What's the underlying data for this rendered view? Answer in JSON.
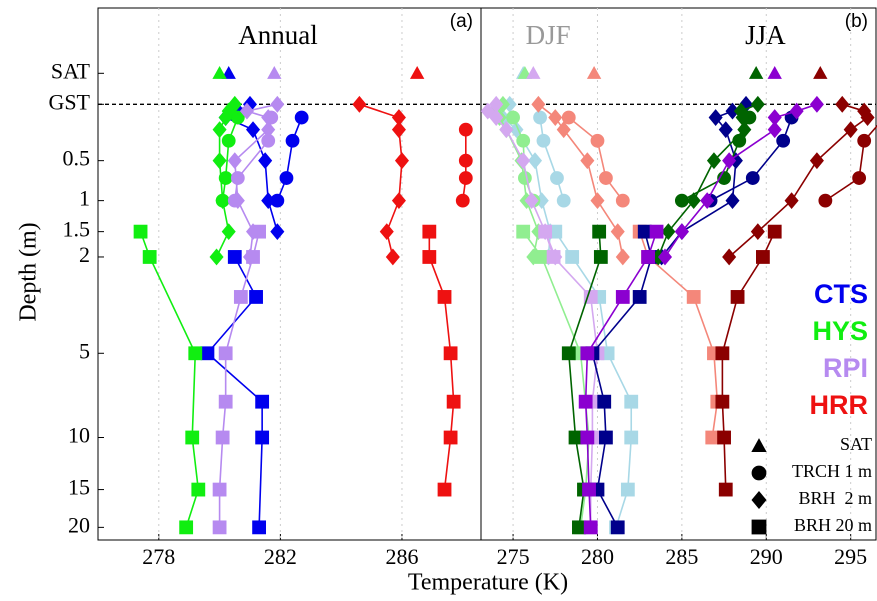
{
  "chart_data": [
    {
      "type": "profile",
      "titles": [
        {
          "text": "Annual",
          "color": "#000000"
        }
      ],
      "panel_label": "(a)",
      "xlabel": "Temperature (K)",
      "ylabel": "Depth (m)",
      "yscale": "log1p",
      "xlim": [
        276,
        288.6
      ],
      "xticks": [
        278,
        282,
        286
      ],
      "ylim": [
        -0.5,
        22
      ],
      "yticks": [
        {
          "value": -0.2,
          "label": "SAT"
        },
        {
          "value": 0,
          "label": "GST",
          "line": "dashed"
        },
        0.5,
        1,
        1.5,
        2,
        5,
        10,
        15,
        20
      ],
      "series": [
        {
          "color": "#0000ee",
          "marker": "triangle",
          "depths": [
            -0.2
          ],
          "values": [
            280.3
          ]
        },
        {
          "color": "#0000ee",
          "marker": "circle",
          "depths": [
            0.1,
            0.3,
            0.7,
            1.0
          ],
          "values": [
            282.7,
            282.4,
            282.2,
            281.9
          ]
        },
        {
          "color": "#0000ee",
          "marker": "diamond",
          "depths": [
            0,
            0.05,
            0.1,
            0.2,
            0.5,
            1.0,
            1.5
          ],
          "values": [
            281.0,
            280.6,
            280.2,
            281.1,
            281.5,
            281.6,
            281.9
          ]
        },
        {
          "color": "#0000ee",
          "marker": "square",
          "depths": [
            2,
            3,
            5,
            7.5,
            10,
            20
          ],
          "values": [
            280.5,
            281.2,
            279.6,
            281.4,
            281.4,
            281.3
          ]
        },
        {
          "color": "#11ee11",
          "marker": "triangle",
          "depths": [
            -0.2
          ],
          "values": [
            280.0
          ]
        },
        {
          "color": "#11ee11",
          "marker": "circle",
          "depths": [
            0.1,
            0.3,
            0.7,
            1.0
          ],
          "values": [
            280.6,
            280.3,
            280.2,
            280.1
          ]
        },
        {
          "color": "#11ee11",
          "marker": "diamond",
          "depths": [
            0,
            0.05,
            0.1,
            0.2,
            0.5,
            1.0,
            1.5,
            2
          ],
          "values": [
            280.5,
            280.3,
            280.2,
            280.0,
            280.0,
            280.1,
            280.3,
            279.9
          ]
        },
        {
          "color": "#11ee11",
          "marker": "square",
          "depths": [
            1.5,
            2,
            5,
            10,
            15,
            20
          ],
          "values": [
            277.4,
            277.7,
            279.2,
            279.1,
            279.3,
            278.9
          ]
        },
        {
          "color": "#b68af0",
          "marker": "triangle",
          "depths": [
            -0.2
          ],
          "values": [
            281.8
          ]
        },
        {
          "color": "#b68af0",
          "marker": "circle",
          "depths": [
            0.1,
            0.3,
            0.7,
            1.0
          ],
          "values": [
            281.7,
            281.6,
            280.6,
            280.5
          ]
        },
        {
          "color": "#b68af0",
          "marker": "diamond",
          "depths": [
            0,
            0.05,
            0.1,
            0.2,
            0.5,
            1.0,
            1.5,
            2
          ],
          "values": [
            281.9,
            280.9,
            281.6,
            281.6,
            280.5,
            280.6,
            281.1,
            281.0
          ]
        },
        {
          "color": "#b68af0",
          "marker": "square",
          "depths": [
            1.5,
            2,
            3,
            5,
            7.5,
            10,
            15,
            20
          ],
          "values": [
            281.3,
            281.1,
            280.7,
            280.2,
            280.2,
            280.1,
            280.0,
            280.0
          ]
        },
        {
          "color": "#ee1111",
          "marker": "triangle",
          "depths": [
            -0.2
          ],
          "values": [
            286.5
          ]
        },
        {
          "color": "#ee1111",
          "marker": "circle",
          "depths": [
            0.2,
            0.5,
            0.7,
            1.0
          ],
          "values": [
            288.1,
            288.1,
            288.1,
            288.0
          ]
        },
        {
          "color": "#ee1111",
          "marker": "diamond",
          "depths": [
            0,
            0.1,
            0.2,
            0.5,
            1.0,
            1.5,
            2
          ],
          "values": [
            284.6,
            285.9,
            285.9,
            286.0,
            285.9,
            285.5,
            285.7
          ]
        },
        {
          "color": "#ee1111",
          "marker": "square",
          "depths": [
            1.5,
            2,
            3,
            5,
            7.5,
            10,
            15
          ],
          "values": [
            286.9,
            286.9,
            287.4,
            287.6,
            287.7,
            287.6,
            287.4
          ]
        }
      ]
    },
    {
      "type": "profile",
      "titles": [
        {
          "text": "DJF",
          "color": "#999999"
        },
        {
          "text": "JJA",
          "color": "#000000"
        }
      ],
      "panel_label": "(b)",
      "xlim": [
        273.1,
        296.5
      ],
      "xticks": [
        275,
        280,
        285,
        290,
        295
      ],
      "legend": {
        "position": "right",
        "stations": [
          {
            "text": "CTS",
            "color": "#0000ee"
          },
          {
            "text": "HYS",
            "color": "#11ee11"
          },
          {
            "text": "RPI",
            "color": "#b68af0"
          },
          {
            "text": "HRR",
            "color": "#ee1111"
          }
        ],
        "markers": [
          {
            "text": "SAT",
            "marker": "triangle"
          },
          {
            "text": "TRCH 1 m",
            "marker": "circle"
          },
          {
            "text": "BRH  2 m",
            "marker": "diamond"
          },
          {
            "text": "BRH 20 m",
            "marker": "square"
          }
        ]
      },
      "series": [
        {
          "color": "#a8d8e6",
          "marker": "triangle",
          "depths": [
            -0.2
          ],
          "values": [
            275.6
          ]
        },
        {
          "color": "#a8d8e6",
          "marker": "circle",
          "depths": [
            0.1,
            0.3,
            0.7,
            1.0
          ],
          "values": [
            276.6,
            276.8,
            277.6,
            278.0
          ]
        },
        {
          "color": "#a8d8e6",
          "marker": "diamond",
          "depths": [
            0,
            0.05,
            0.1,
            0.2,
            0.5,
            1.0,
            1.5,
            2
          ],
          "values": [
            274.8,
            274.0,
            274.4,
            275.2,
            276.3,
            276.7,
            277.2,
            277.1
          ]
        },
        {
          "color": "#a8d8e6",
          "marker": "square",
          "depths": [
            1.5,
            2,
            3,
            5,
            7.5,
            10,
            15,
            20
          ],
          "values": [
            277.5,
            278.5,
            280.1,
            280.6,
            282.0,
            282.0,
            281.8,
            281.1
          ]
        },
        {
          "color": "#90ee90",
          "marker": "triangle",
          "depths": [
            -0.2
          ],
          "values": [
            275.7
          ]
        },
        {
          "color": "#90ee90",
          "marker": "circle",
          "depths": [
            0.1,
            0.3,
            0.7,
            1.0
          ],
          "values": [
            275.0,
            275.6,
            275.7,
            276.2
          ]
        },
        {
          "color": "#90ee90",
          "marker": "diamond",
          "depths": [
            0,
            0.05,
            0.1,
            0.2,
            0.5,
            1.0,
            1.5,
            2
          ],
          "values": [
            274.4,
            273.9,
            274.2,
            274.6,
            275.5,
            275.8,
            276.5,
            276.2
          ]
        },
        {
          "color": "#90ee90",
          "marker": "square",
          "depths": [
            1.5,
            2,
            5,
            10,
            15,
            20
          ],
          "values": [
            275.6,
            276.7,
            279.0,
            279.5,
            279.3,
            279.0
          ]
        },
        {
          "color": "#d4a8f0",
          "marker": "triangle",
          "depths": [
            -0.2
          ],
          "values": [
            276.2
          ]
        },
        {
          "color": "#d4a8f0",
          "marker": "diamond",
          "depths": [
            0,
            0.05,
            0.1,
            0.2,
            0.5,
            1.0,
            1.5,
            2
          ],
          "values": [
            274.0,
            273.5,
            274.0,
            274.6,
            275.6,
            276.1,
            276.9,
            277.5
          ]
        },
        {
          "color": "#d4a8f0",
          "marker": "square",
          "depths": [
            1.5,
            2,
            3,
            5,
            7.5,
            10,
            15,
            20
          ],
          "values": [
            276.9,
            277.4,
            279.6,
            280.0,
            279.7,
            279.7,
            279.6,
            279.6
          ]
        },
        {
          "color": "#f4877a",
          "marker": "triangle",
          "depths": [
            -0.2
          ],
          "values": [
            279.8
          ]
        },
        {
          "color": "#f4877a",
          "marker": "circle",
          "depths": [
            0.1,
            0.3,
            0.7,
            1.0
          ],
          "values": [
            278.3,
            280.0,
            280.5,
            281.5
          ]
        },
        {
          "color": "#f4877a",
          "marker": "diamond",
          "depths": [
            0,
            0.1,
            0.2,
            0.5,
            1.0,
            1.5,
            2
          ],
          "values": [
            276.5,
            277.5,
            278.0,
            279.4,
            280.0,
            281.2,
            281.5
          ]
        },
        {
          "color": "#f4877a",
          "marker": "square",
          "depths": [
            1.5,
            2,
            3,
            5,
            7.5,
            10
          ],
          "values": [
            282.5,
            283.0,
            285.7,
            286.9,
            287.1,
            286.8
          ]
        },
        {
          "color": "#00008b",
          "marker": "circle",
          "depths": [
            0.1,
            0.3,
            0.7,
            1.0
          ],
          "values": [
            291.5,
            291.0,
            289.2,
            286.7
          ]
        },
        {
          "color": "#00008b",
          "marker": "diamond",
          "depths": [
            0,
            0.05,
            0.1,
            0.2,
            0.5,
            1.0,
            1.5,
            2
          ],
          "values": [
            288.8,
            288.0,
            287.0,
            287.6,
            288.2,
            288.0,
            285.0,
            283.8
          ]
        },
        {
          "color": "#00008b",
          "marker": "square",
          "depths": [
            1.5,
            2,
            3,
            5,
            7.5,
            10,
            15,
            20
          ],
          "values": [
            282.8,
            283.2,
            282.5,
            279.7,
            280.4,
            280.5,
            280.0,
            281.2
          ]
        },
        {
          "color": "#006400",
          "marker": "triangle",
          "depths": [
            -0.2
          ],
          "values": [
            289.4
          ]
        },
        {
          "color": "#006400",
          "marker": "circle",
          "depths": [
            0.1,
            0.3,
            0.7,
            1.0
          ],
          "values": [
            289.0,
            288.4,
            287.5,
            285.0
          ]
        },
        {
          "color": "#006400",
          "marker": "diamond",
          "depths": [
            0,
            0.05,
            0.1,
            0.2,
            0.5,
            1.0,
            1.5,
            2
          ],
          "values": [
            289.5,
            288.5,
            288.6,
            288.7,
            286.9,
            285.7,
            284.2,
            283.6
          ]
        },
        {
          "color": "#006400",
          "marker": "square",
          "depths": [
            1.5,
            2,
            5,
            10,
            15,
            20
          ],
          "values": [
            280.1,
            280.2,
            278.3,
            278.7,
            279.2,
            278.9
          ]
        },
        {
          "color": "#8b00d0",
          "marker": "triangle",
          "depths": [
            -0.2
          ],
          "values": [
            290.5
          ]
        },
        {
          "color": "#8b00d0",
          "marker": "diamond",
          "depths": [
            0,
            0.05,
            0.1,
            0.2,
            0.5,
            1.0,
            1.5,
            2
          ],
          "values": [
            293.0,
            291.8,
            290.5,
            290.5,
            287.8,
            286.5,
            285.0,
            284.0
          ]
        },
        {
          "color": "#8b00d0",
          "marker": "square",
          "depths": [
            1.5,
            2,
            3,
            5,
            7.5,
            10,
            15,
            20
          ],
          "values": [
            283.5,
            283.0,
            281.5,
            279.4,
            279.3,
            279.4,
            279.5,
            279.6
          ]
        },
        {
          "color": "#8b0000",
          "marker": "triangle",
          "depths": [
            -0.2
          ],
          "values": [
            293.2
          ]
        },
        {
          "color": "#8b0000",
          "marker": "circle",
          "depths": [
            0.1,
            0.3,
            0.7,
            1.0
          ],
          "values": [
            297.0,
            295.8,
            295.5,
            293.5
          ]
        },
        {
          "color": "#8b0000",
          "marker": "diamond",
          "depths": [
            0,
            0.05,
            0.1,
            0.2,
            0.5,
            1.0,
            1.5,
            2
          ],
          "values": [
            294.5,
            295.8,
            296.0,
            295.0,
            293.0,
            291.5,
            289.5,
            287.8
          ]
        },
        {
          "color": "#8b0000",
          "marker": "square",
          "depths": [
            1.5,
            2,
            3,
            5,
            7.5,
            10,
            15
          ],
          "values": [
            290.5,
            289.8,
            288.3,
            287.4,
            287.4,
            287.5,
            287.6
          ]
        }
      ]
    }
  ]
}
